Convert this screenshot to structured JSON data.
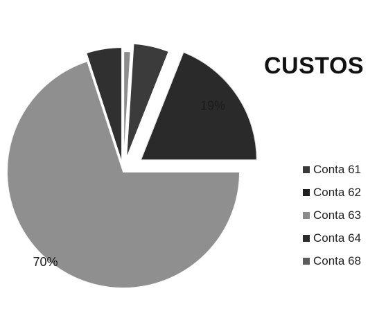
{
  "chart_data": {
    "type": "pie",
    "title": "CUSTOS",
    "categories": [
      "Conta 61",
      "Conta 62",
      "Conta 63",
      "Conta 64",
      "Conta 68"
    ],
    "values": [
      1,
      5,
      19,
      70,
      5
    ],
    "data_labels": [
      "1%",
      "5%",
      "19%",
      "70%",
      "5%"
    ],
    "legend_placement": "right",
    "legend_items": [
      {
        "label": "Conta 61",
        "color": "#3a3a3a"
      },
      {
        "label": "Conta 62",
        "color": "#1f1f1f"
      },
      {
        "label": "Conta 63",
        "color": "#8b8b8b"
      },
      {
        "label": "Conta 64",
        "color": "#2b2b2b"
      },
      {
        "label": "Conta 68",
        "color": "#5c5c5c"
      }
    ],
    "slice_colors": [
      "#8d8d8d",
      "#3b3b3b",
      "#2d2d2d",
      "#8c8c8c",
      "#303030"
    ]
  }
}
